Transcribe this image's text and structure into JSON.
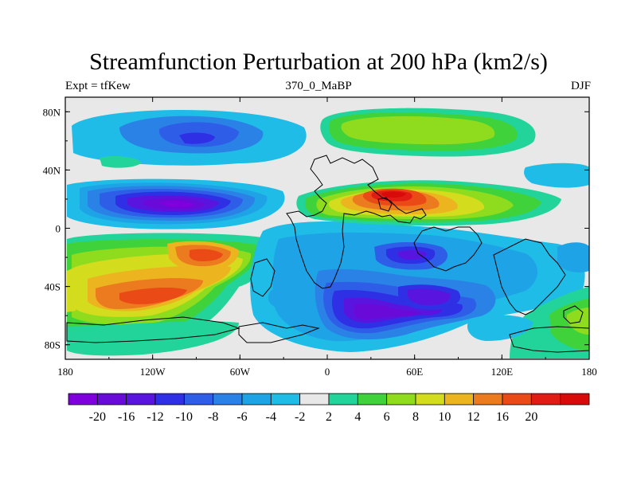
{
  "title": "Streamfunction Perturbation at 200 hPa (km2/s)",
  "left_string": "Expt = tfKew",
  "center_string": "370_0_MaBP",
  "right_string": "DJF",
  "x_ticks": [
    {
      "lon": -180,
      "label": "180"
    },
    {
      "lon": -120,
      "label": "120W"
    },
    {
      "lon": -60,
      "label": "60W"
    },
    {
      "lon": 0,
      "label": "0"
    },
    {
      "lon": 60,
      "label": "60E"
    },
    {
      "lon": 120,
      "label": "120E"
    },
    {
      "lon": 180,
      "label": "180"
    }
  ],
  "y_ticks": [
    {
      "lat": 80,
      "label": "80N"
    },
    {
      "lat": 40,
      "label": "40N"
    },
    {
      "lat": 0,
      "label": "0"
    },
    {
      "lat": -40,
      "label": "40S"
    },
    {
      "lat": -80,
      "label": "80S"
    }
  ],
  "colorbar": {
    "colors": [
      "#7f00dc",
      "#6a0ad8",
      "#5a14e0",
      "#2f2fe6",
      "#2e5ee8",
      "#2b82e6",
      "#1ea3e6",
      "#1fbce8",
      "#e8e8e8",
      "#22d49a",
      "#3fd23a",
      "#8fdc1e",
      "#d4dc1e",
      "#ecb41e",
      "#ec7a1e",
      "#ea4a16",
      "#e01c14",
      "#d80a0a"
    ],
    "labels": [
      "-20",
      "-16",
      "-12",
      "-10",
      "-8",
      "-6",
      "-4",
      "-2",
      "2",
      "4",
      "6",
      "8",
      "10",
      "12",
      "16",
      "20"
    ]
  },
  "chart_data": {
    "type": "contour_map",
    "variable": "Streamfunction Perturbation at 200 hPa",
    "units": "km2/s",
    "experiment": "tfKew",
    "case": "370_0_MaBP",
    "season": "DJF",
    "lon_range": [
      -180,
      180
    ],
    "lat_range": [
      -90,
      90
    ],
    "contour_levels": [
      -20,
      -16,
      -12,
      -10,
      -8,
      -6,
      -4,
      -2,
      2,
      4,
      6,
      8,
      10,
      12,
      16,
      20
    ],
    "features": [
      {
        "lon": -80,
        "lat": 58,
        "value": -10
      },
      {
        "lon": -100,
        "lat": 16,
        "value": -20
      },
      {
        "lon": -85,
        "lat": -20,
        "value": 14
      },
      {
        "lon": -120,
        "lat": -52,
        "value": 14
      },
      {
        "lon": 50,
        "lat": 22,
        "value": 18
      },
      {
        "lon": 60,
        "lat": -20,
        "value": -12
      },
      {
        "lon": 20,
        "lat": -62,
        "value": -16
      },
      {
        "lon": 80,
        "lat": -52,
        "value": -14
      },
      {
        "lon": 70,
        "lat": 60,
        "value": 6
      }
    ]
  }
}
